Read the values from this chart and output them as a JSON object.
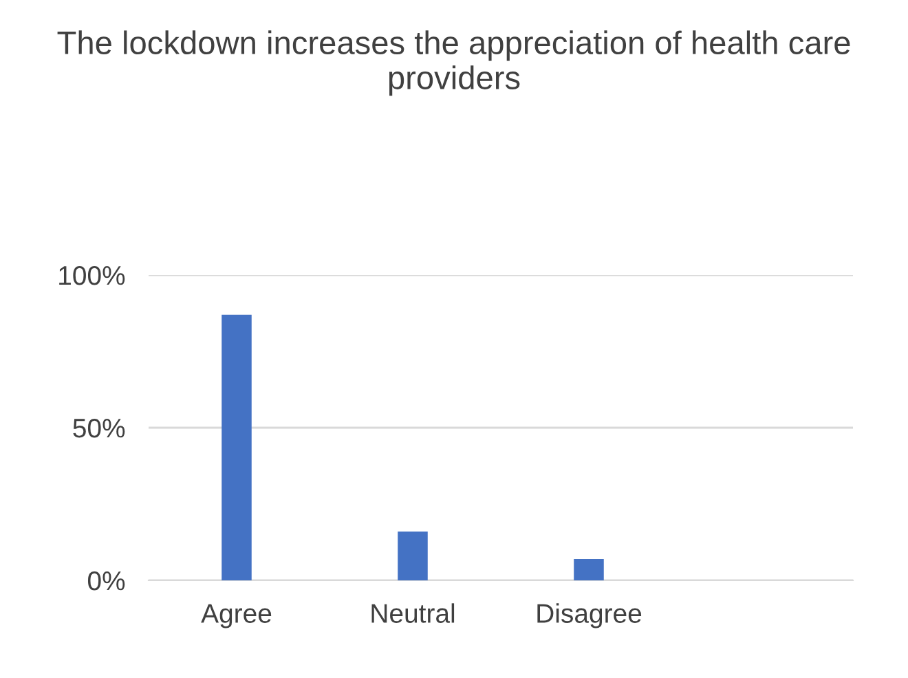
{
  "chart_data": {
    "type": "bar",
    "title": "The lockdown increases the appreciation of health care providers",
    "categories": [
      "Agree",
      "Neutral",
      "Disagree",
      null
    ],
    "values": [
      87,
      16,
      7,
      null
    ],
    "color": "#4472c4",
    "ylim": [
      0,
      100
    ],
    "yticks": [
      {
        "value": 0,
        "label": "0%"
      },
      {
        "value": 50,
        "label": "50%"
      },
      {
        "value": 100,
        "label": "100%"
      }
    ],
    "grid": "y",
    "legend": false
  }
}
